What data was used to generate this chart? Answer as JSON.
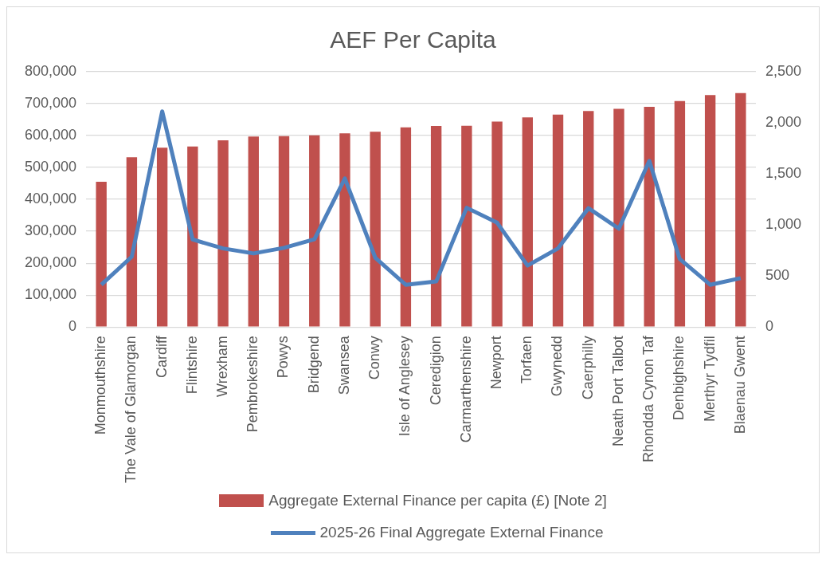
{
  "chart_data": {
    "type": "bar",
    "title": "AEF Per Capita",
    "categories": [
      "Monmouthshire",
      "The Vale of Glamorgan",
      "Cardiff",
      "Flintshire",
      "Wrexham",
      "Pembrokeshire",
      "Powys",
      "Bridgend",
      "Swansea",
      "Conwy",
      "Isle of Anglesey",
      "Ceredigion",
      "Carmarthenshire",
      "Newport",
      "Torfaen",
      "Gwynedd",
      "Caerphilly",
      "Neath Port Talbot",
      "Rhondda Cynon Taf",
      "Denbighshire",
      "Merthyr Tydfil",
      "Blaenau Gwent"
    ],
    "series": [
      {
        "name": "Aggregate External Finance per capita (£) [Note 2]",
        "color": "#c0504d",
        "values": [
          455000,
          532000,
          562000,
          566000,
          585000,
          597000,
          598000,
          601000,
          607000,
          612000,
          626000,
          630000,
          631000,
          644000,
          657000,
          666000,
          677000,
          684000,
          690000,
          708000,
          727000,
          733000
        ]
      },
      {
        "name": "2025-26 Final Aggregate External Finance",
        "type": "line",
        "axis": "y2",
        "color": "#4f81bd",
        "values": [
          415,
          689,
          2112,
          857,
          770,
          721,
          776,
          860,
          1455,
          679,
          414,
          446,
          1168,
          1022,
          602,
          770,
          1164,
          964,
          1627,
          666,
          414,
          479
        ]
      }
    ],
    "ylim": [
      0,
      800000
    ],
    "yticks": [
      {
        "value": 0,
        "label": "0"
      },
      {
        "value": 100000,
        "label": "100,000"
      },
      {
        "value": 200000,
        "label": "200,000"
      },
      {
        "value": 300000,
        "label": "300,000"
      },
      {
        "value": 400000,
        "label": "400,000"
      },
      {
        "value": 500000,
        "label": "500,000"
      },
      {
        "value": 600000,
        "label": "600,000"
      },
      {
        "value": 700000,
        "label": "700,000"
      },
      {
        "value": 800000,
        "label": "800,000"
      }
    ],
    "y2lim": [
      0,
      2500
    ],
    "y2ticks": [
      {
        "value": 0,
        "label": "0"
      },
      {
        "value": 500,
        "label": "500"
      },
      {
        "value": 1000,
        "label": "1,000"
      },
      {
        "value": 1500,
        "label": "1,500"
      },
      {
        "value": 2000,
        "label": "2,000"
      },
      {
        "value": 2500,
        "label": "2,500"
      }
    ],
    "grid": "y",
    "legend": "bottom",
    "marker": "none",
    "line_style": "solid"
  }
}
